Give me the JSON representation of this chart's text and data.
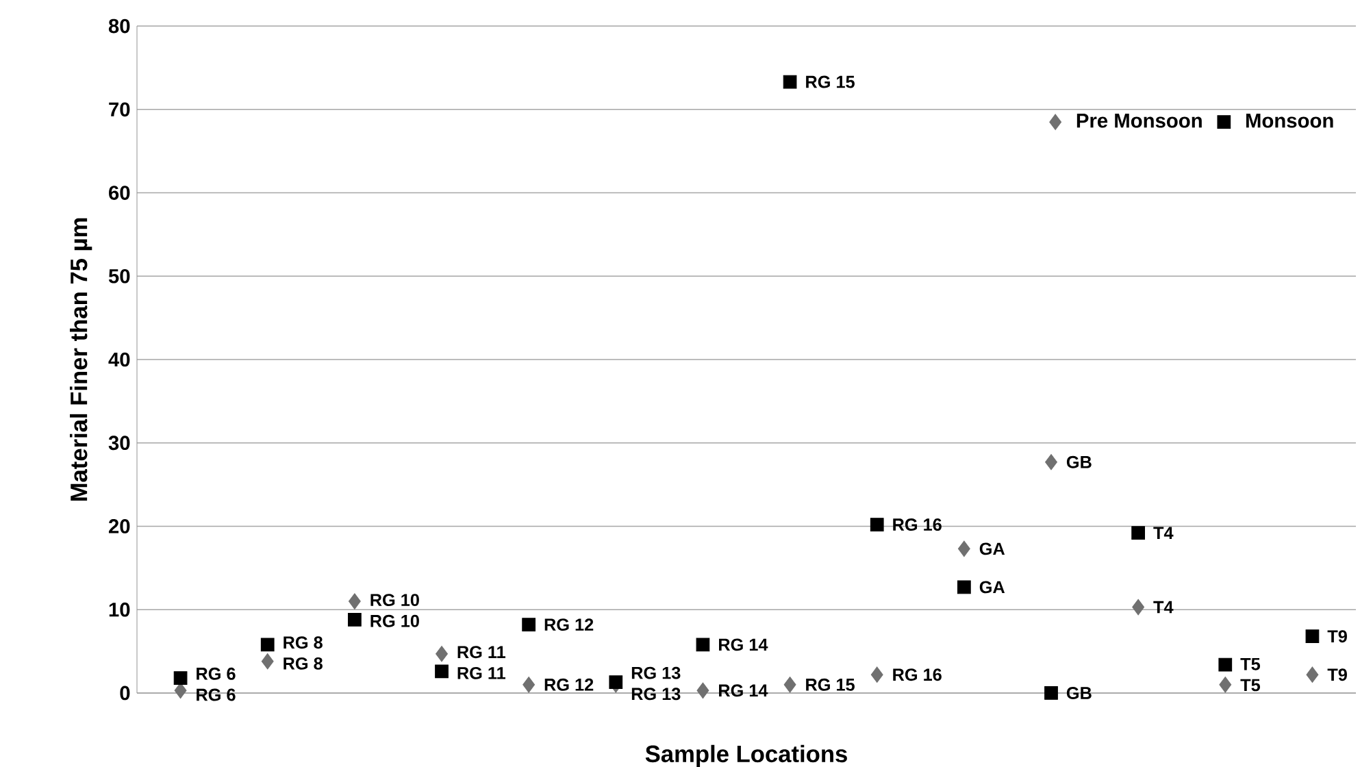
{
  "chart_data": {
    "type": "scatter",
    "xlabel": "Sample Locations",
    "ylabel": "Material Finer than 75 µm",
    "categories": [
      null,
      null,
      null,
      null,
      null,
      null,
      null,
      null,
      null,
      null,
      null,
      null,
      null,
      null
    ],
    "ylim": [
      0,
      80
    ],
    "yticks": [
      0,
      10,
      20,
      30,
      40,
      50,
      60,
      70,
      80
    ],
    "tick_labels": "y",
    "grid": "y",
    "legend": "top right",
    "series": [
      {
        "name": "Pre Monsoon",
        "color": "#707070",
        "marker": "diamond",
        "values": [
          0.3,
          3.8,
          11,
          4.7,
          1,
          1,
          0.3,
          1,
          2.2,
          17.3,
          27.7,
          10.3,
          1,
          2.2
        ],
        "value_labels": [
          "RG 6",
          "RG 8",
          "RG 10",
          "RG 11",
          "RG 12",
          "RG 13",
          "RG 14",
          "RG 15",
          "RG 16",
          "GA",
          "GB",
          "T4",
          "T5",
          "T9"
        ]
      },
      {
        "name": "Monsoon",
        "color": "#000000",
        "marker": "square",
        "values": [
          1.8,
          5.8,
          8.8,
          2.6,
          8.2,
          1.3,
          5.8,
          73.3,
          20.2,
          12.7,
          0,
          19.2,
          3.4,
          6.8
        ],
        "value_labels": [
          "RG 6",
          "RG 8",
          "RG 10",
          "RG 11",
          "RG 12",
          "RG 13",
          "RG 14",
          "RG 15",
          "RG 16",
          "GA",
          "GB",
          "T4",
          "T5",
          "T9"
        ]
      }
    ]
  }
}
